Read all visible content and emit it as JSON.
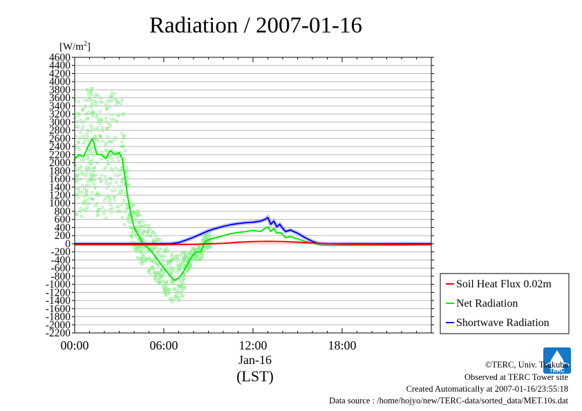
{
  "chart_data": {
    "type": "line",
    "title": "Radiation / 2007-01-16",
    "ylabel": "[W/m²]",
    "ylabel_base": "[W/m",
    "ylabel_sup": "2",
    "ylabel_end": "]",
    "xlabel": "(LST)",
    "date_label": "Jan-16",
    "ylim": [
      -2200,
      4600
    ],
    "ytick_step": 200,
    "yticks": [
      "4600",
      "4400",
      "4200",
      "4000",
      "3800",
      "3600",
      "3400",
      "3200",
      "3000",
      "2800",
      "2600",
      "2400",
      "2200",
      "2000",
      "1800",
      "1600",
      "1400",
      "1200",
      "1000",
      "800",
      "600",
      "400",
      "200",
      "0",
      "-200",
      "-400",
      "-600",
      "-800",
      "-1000",
      "-1200",
      "-1400",
      "-1600",
      "-1800",
      "-2000",
      "-2200"
    ],
    "xlim_hours": [
      0,
      24
    ],
    "xticks": [
      {
        "hour": 0,
        "label": "00:00"
      },
      {
        "hour": 6,
        "label": "06:00"
      },
      {
        "hour": 12,
        "label": "12:00"
      },
      {
        "hour": 18,
        "label": "18:00"
      }
    ],
    "grid": true,
    "legend_position": "right-bottom",
    "series": [
      {
        "name": "Soil Heat Flux 0.02m",
        "color": "#ff0000",
        "x": [
          0,
          2,
          4,
          6,
          8,
          10,
          11,
          12,
          13,
          14,
          15,
          16,
          17,
          18,
          20,
          22,
          24
        ],
        "y": [
          -20,
          -20,
          -20,
          -20,
          -15,
          10,
          40,
          55,
          60,
          55,
          40,
          20,
          0,
          -10,
          -15,
          -20,
          -20
        ]
      },
      {
        "name": "Net Radiation",
        "color": "#00ee00",
        "x": [
          0,
          0.3,
          0.6,
          0.9,
          1.2,
          1.5,
          1.8,
          2.1,
          2.4,
          2.7,
          3.0,
          3.2,
          3.4,
          3.6,
          3.8,
          4.0,
          4.3,
          4.6,
          4.9,
          5.2,
          5.5,
          5.8,
          6.1,
          6.4,
          6.7,
          7.0,
          7.3,
          7.6,
          7.9,
          8.2,
          8.5,
          8.7,
          8.8,
          9.0,
          9.5,
          10.0,
          10.5,
          11.0,
          11.5,
          12.0,
          12.5,
          12.8,
          13.0,
          13.2,
          13.4,
          13.6,
          13.8,
          14.0,
          14.2,
          14.5,
          15.0,
          15.5,
          16.0,
          16.3,
          16.6,
          17.0,
          18.0,
          20.0,
          22.0,
          24.0
        ],
        "y": [
          2100,
          2200,
          2150,
          2400,
          2600,
          2200,
          2200,
          2100,
          2300,
          2200,
          2250,
          2100,
          1600,
          1100,
          700,
          400,
          200,
          0,
          -100,
          -200,
          -350,
          -500,
          -650,
          -780,
          -900,
          -850,
          -700,
          -500,
          -300,
          -200,
          -200,
          0,
          50,
          100,
          150,
          200,
          250,
          280,
          300,
          330,
          300,
          380,
          420,
          300,
          380,
          260,
          280,
          230,
          150,
          180,
          120,
          60,
          20,
          -10,
          -30,
          -40,
          -40,
          -40,
          -30,
          -20
        ]
      },
      {
        "name": "Shortwave Radiation",
        "color": "#0000ff",
        "x": [
          0,
          6,
          6.5,
          7,
          7.5,
          8,
          8.5,
          9,
          9.5,
          10,
          10.5,
          11,
          11.5,
          12,
          12.5,
          12.8,
          13.0,
          13.2,
          13.4,
          13.6,
          13.8,
          14.0,
          14.2,
          14.5,
          15.0,
          15.5,
          16.0,
          16.4,
          17.0,
          18.0,
          20.0,
          22.0,
          24.0
        ],
        "y": [
          0,
          0,
          5,
          30,
          90,
          160,
          240,
          320,
          380,
          430,
          470,
          500,
          520,
          530,
          560,
          600,
          650,
          480,
          560,
          420,
          480,
          380,
          300,
          340,
          260,
          150,
          60,
          10,
          0,
          0,
          0,
          0,
          0
        ]
      }
    ]
  },
  "credits": {
    "copyright": "©TERC, Univ. Tsukuba",
    "observed": "Observed at TERC Tower site",
    "created": "Created Automatically at 2007-01-16/23:55:18",
    "source": "Data source : /home/hojyo/new/TERC-data/sorted_data/MET.10s.dat"
  },
  "logo": {
    "text": "TERC",
    "color": "#1677c9"
  }
}
